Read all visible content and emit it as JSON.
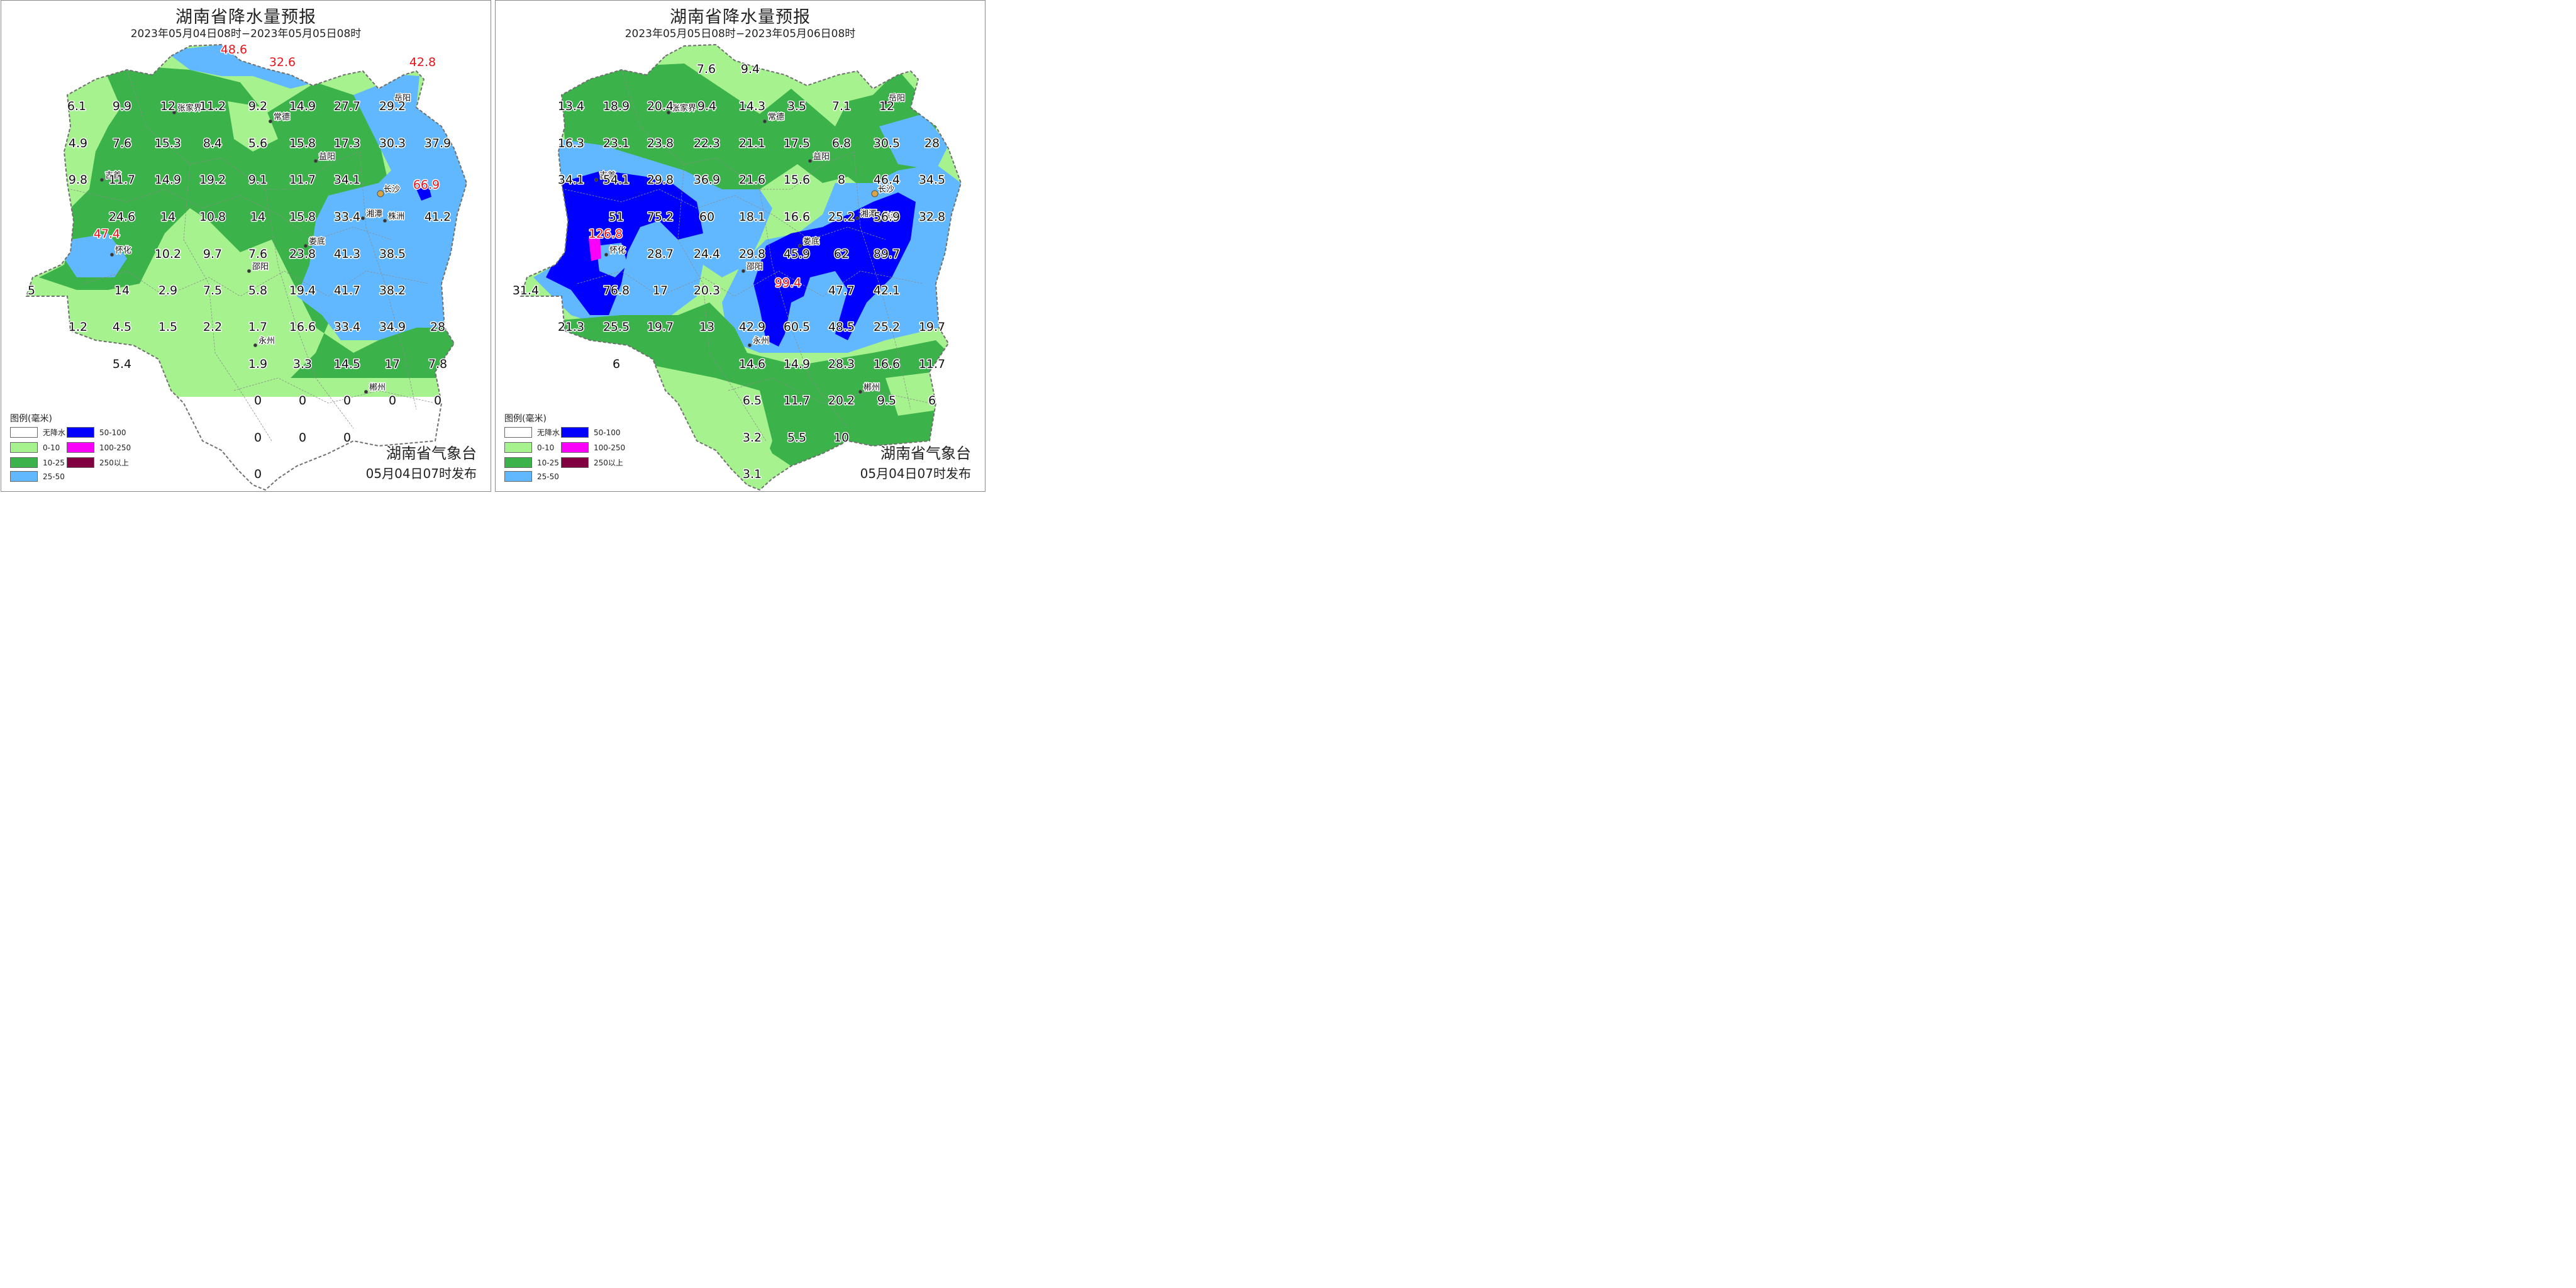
{
  "legend": {
    "title": "图例(毫米)",
    "items": [
      {
        "label": "无降水",
        "color": "#ffffff"
      },
      {
        "label": "0-10",
        "color": "#a6f28f"
      },
      {
        "label": "10-25",
        "color": "#3bb24a"
      },
      {
        "label": "25-50",
        "color": "#61b8ff"
      },
      {
        "label": "50-100",
        "color": "#0000fe"
      },
      {
        "label": "100-250",
        "color": "#fa00fa"
      },
      {
        "label": "250以上",
        "color": "#800040"
      }
    ]
  },
  "colors": {
    "none": "#ffffff",
    "light": "#a6f28f",
    "moderate": "#3bb24a",
    "heavy": "#61b8ff",
    "rainstorm": "#0000fe",
    "severe": "#fa00fa",
    "highlight_value": "#e8141c"
  },
  "panels": [
    {
      "title": "湖南省降水量预报",
      "period": "2023年05月04日08时−2023年05月05日08时",
      "agency": "湖南省气象台",
      "issued": "05月04日07时发布",
      "cities": [
        "张家界",
        "常德",
        "益阳",
        "吉首",
        "长沙",
        "湘潭",
        "株洲",
        "怀化",
        "娄底",
        "邵阳",
        "永州",
        "郴州",
        "岳阳"
      ],
      "values": [
        {
          "text": "48.6",
          "highlight": true
        },
        {
          "text": "32.6",
          "highlight": true
        },
        {
          "text": "42.8",
          "highlight": true
        },
        {
          "text": "6.1"
        },
        {
          "text": "9.9"
        },
        {
          "text": "12"
        },
        {
          "text": "11.2"
        },
        {
          "text": "9.2"
        },
        {
          "text": "14.9"
        },
        {
          "text": "27.7"
        },
        {
          "text": "29.2"
        },
        {
          "text": "4.9"
        },
        {
          "text": "7.6"
        },
        {
          "text": "15.3"
        },
        {
          "text": "8.4"
        },
        {
          "text": "5.6"
        },
        {
          "text": "15.8"
        },
        {
          "text": "17.3"
        },
        {
          "text": "30.3"
        },
        {
          "text": "37.9"
        },
        {
          "text": "9.8"
        },
        {
          "text": "11.7"
        },
        {
          "text": "14.9"
        },
        {
          "text": "19.2"
        },
        {
          "text": "9.1"
        },
        {
          "text": "11.7"
        },
        {
          "text": "34.1"
        },
        {
          "text": "66.9",
          "highlight": true
        },
        {
          "text": "24.6"
        },
        {
          "text": "14"
        },
        {
          "text": "10.8"
        },
        {
          "text": "14"
        },
        {
          "text": "15.8"
        },
        {
          "text": "33.4"
        },
        {
          "text": "41.2"
        },
        {
          "text": "47.4",
          "highlight": true
        },
        {
          "text": "10.2"
        },
        {
          "text": "9.7"
        },
        {
          "text": "7.6"
        },
        {
          "text": "23.8"
        },
        {
          "text": "41.3"
        },
        {
          "text": "38.5"
        },
        {
          "text": "5"
        },
        {
          "text": "14"
        },
        {
          "text": "2.9"
        },
        {
          "text": "7.5"
        },
        {
          "text": "5.8"
        },
        {
          "text": "19.4"
        },
        {
          "text": "41.7"
        },
        {
          "text": "38.2"
        },
        {
          "text": "1.2"
        },
        {
          "text": "4.5"
        },
        {
          "text": "1.5"
        },
        {
          "text": "2.2"
        },
        {
          "text": "1.7"
        },
        {
          "text": "16.6"
        },
        {
          "text": "33.4"
        },
        {
          "text": "34.9"
        },
        {
          "text": "28"
        },
        {
          "text": "5.4"
        },
        {
          "text": "1.9"
        },
        {
          "text": "3.3"
        },
        {
          "text": "14.5"
        },
        {
          "text": "17"
        },
        {
          "text": "7.8"
        },
        {
          "text": "0"
        },
        {
          "text": "0"
        },
        {
          "text": "0"
        },
        {
          "text": "0"
        },
        {
          "text": "0"
        },
        {
          "text": "0"
        },
        {
          "text": "0"
        },
        {
          "text": "0"
        },
        {
          "text": "0"
        }
      ]
    },
    {
      "title": "湖南省降水量预报",
      "period": "2023年05月05日08时−2023年05月06日08时",
      "agency": "湖南省气象台",
      "issued": "05月04日07时发布",
      "cities": [
        "张家界",
        "常德",
        "益阳",
        "吉首",
        "长沙",
        "湘潭",
        "株洲",
        "怀化",
        "娄底",
        "邵阳",
        "永州",
        "郴州",
        "岳阳"
      ],
      "values": [
        {
          "text": "7.6"
        },
        {
          "text": "9.4"
        },
        {
          "text": "13.4"
        },
        {
          "text": "18.9"
        },
        {
          "text": "20.4"
        },
        {
          "text": "9.4"
        },
        {
          "text": "14.3"
        },
        {
          "text": "3.5"
        },
        {
          "text": "7.1"
        },
        {
          "text": "12"
        },
        {
          "text": "16.3"
        },
        {
          "text": "23.1"
        },
        {
          "text": "23.8"
        },
        {
          "text": "22.3"
        },
        {
          "text": "21.1"
        },
        {
          "text": "17.5"
        },
        {
          "text": "6.8"
        },
        {
          "text": "30.5"
        },
        {
          "text": "28"
        },
        {
          "text": "34.1"
        },
        {
          "text": "54.1"
        },
        {
          "text": "29.8"
        },
        {
          "text": "36.9"
        },
        {
          "text": "21.6"
        },
        {
          "text": "15.6"
        },
        {
          "text": "8"
        },
        {
          "text": "46.4"
        },
        {
          "text": "34.5"
        },
        {
          "text": "51"
        },
        {
          "text": "75.2"
        },
        {
          "text": "60"
        },
        {
          "text": "18.1"
        },
        {
          "text": "16.6"
        },
        {
          "text": "25.2"
        },
        {
          "text": "56.9"
        },
        {
          "text": "32.8"
        },
        {
          "text": "126.8",
          "highlight": true
        },
        {
          "text": "28.7"
        },
        {
          "text": "24.4"
        },
        {
          "text": "29.8"
        },
        {
          "text": "45.9"
        },
        {
          "text": "62"
        },
        {
          "text": "89.7"
        },
        {
          "text": "99.4",
          "highlight": true
        },
        {
          "text": "31.4"
        },
        {
          "text": "76.8"
        },
        {
          "text": "17"
        },
        {
          "text": "20.3"
        },
        {
          "text": "47.7"
        },
        {
          "text": "42.1"
        },
        {
          "text": "21.3"
        },
        {
          "text": "25.5"
        },
        {
          "text": "19.7"
        },
        {
          "text": "13"
        },
        {
          "text": "42.9"
        },
        {
          "text": "60.5"
        },
        {
          "text": "48.5"
        },
        {
          "text": "25.2"
        },
        {
          "text": "19.7"
        },
        {
          "text": "6"
        },
        {
          "text": "14.6"
        },
        {
          "text": "14.9"
        },
        {
          "text": "28.3"
        },
        {
          "text": "16.6"
        },
        {
          "text": "11.7"
        },
        {
          "text": "6.5"
        },
        {
          "text": "11.7"
        },
        {
          "text": "20.2"
        },
        {
          "text": "9.5"
        },
        {
          "text": "6"
        },
        {
          "text": "3.2"
        },
        {
          "text": "5.5"
        },
        {
          "text": "10"
        },
        {
          "text": "3.1"
        }
      ]
    }
  ]
}
